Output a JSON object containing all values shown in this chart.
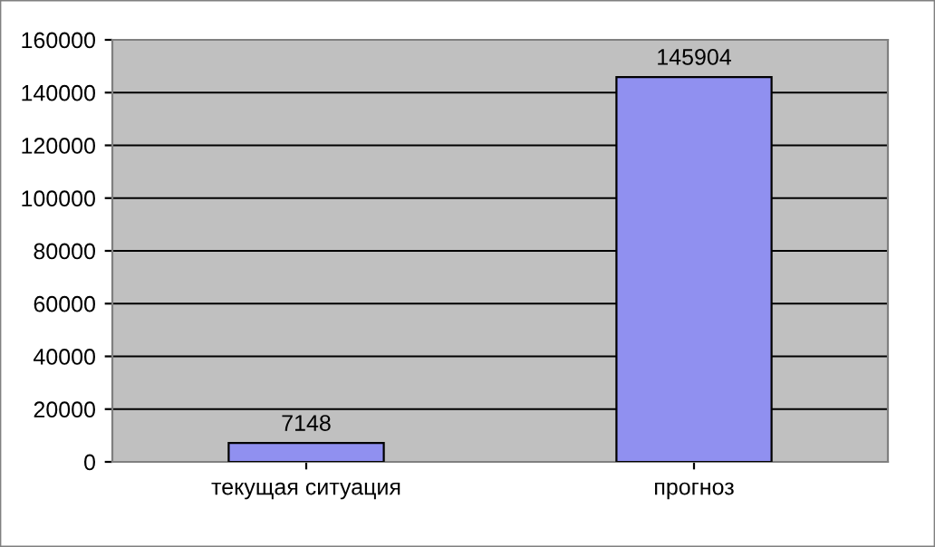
{
  "chart_data": {
    "type": "bar",
    "categories": [
      "текущая ситуация",
      "прогноз"
    ],
    "values": [
      7148,
      145904
    ],
    "color": "#9090f0",
    "ylim": [
      0,
      160000
    ],
    "yticks": [
      0,
      20000,
      40000,
      60000,
      80000,
      100000,
      120000,
      140000,
      160000
    ],
    "grid": "y",
    "data_labels": true
  }
}
